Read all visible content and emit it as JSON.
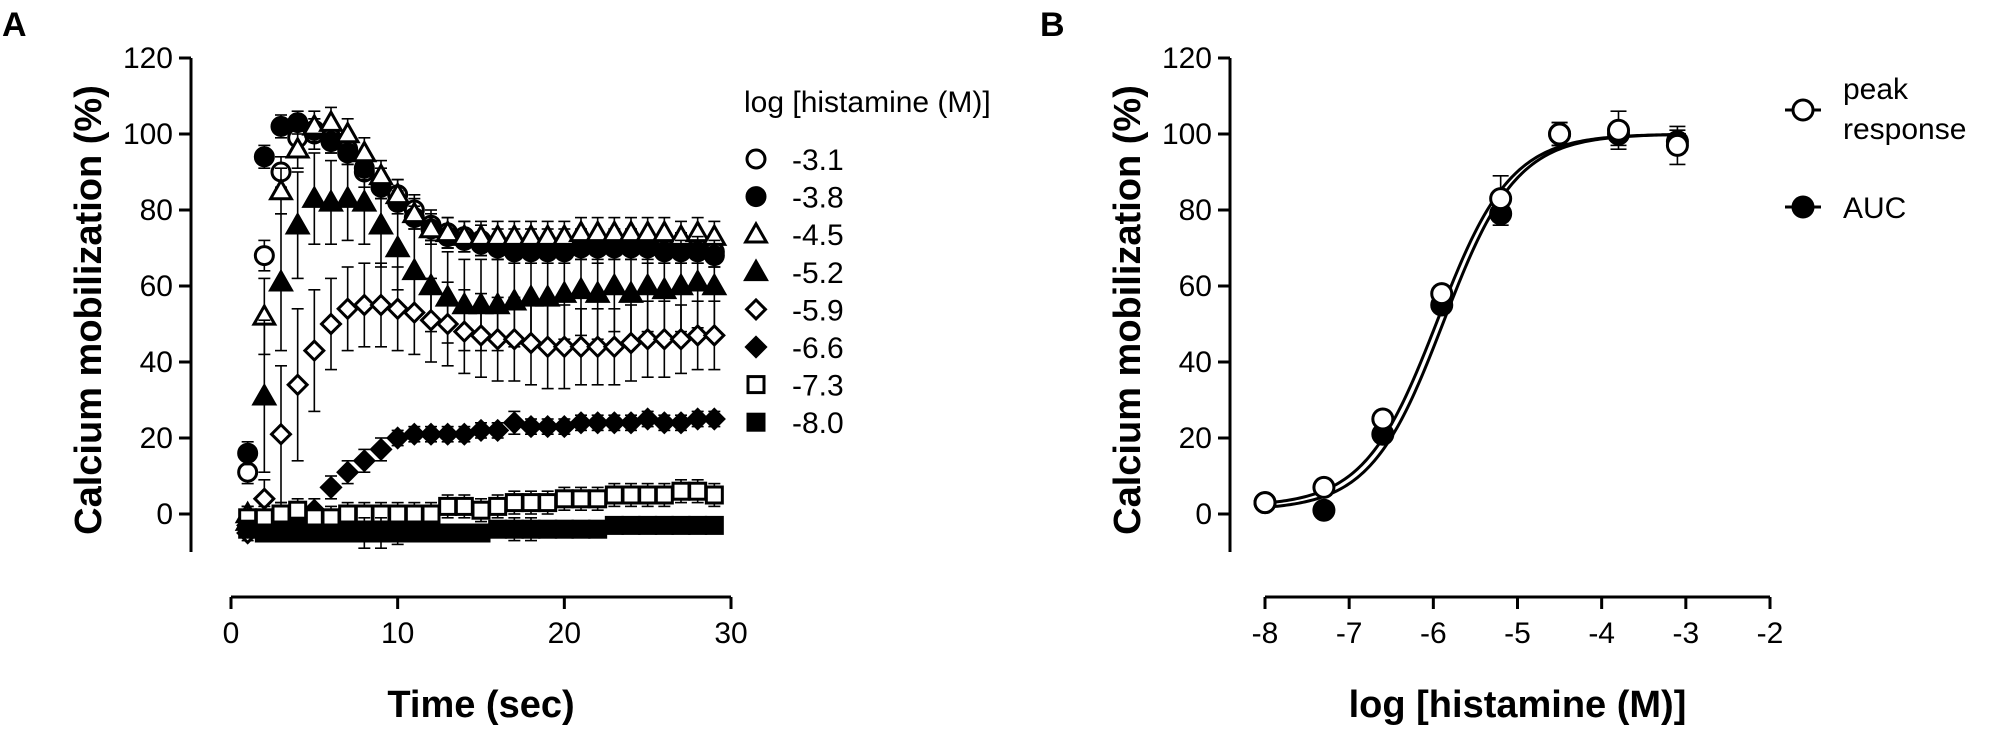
{
  "chart_data": [
    {
      "panel": "A",
      "type": "scatter",
      "xlabel": "Time (sec)",
      "ylabel": "Calcium mobilization (%)",
      "xlim": [
        0,
        30
      ],
      "ylim": [
        -10,
        120
      ],
      "xticks": [
        0,
        10,
        20,
        30
      ],
      "yticks": [
        0,
        20,
        40,
        60,
        80,
        100,
        120
      ],
      "legend_title": "log [histamine (M)]",
      "legend_position": "right",
      "series": [
        {
          "name": "-3.1",
          "marker": "circle",
          "filled": false,
          "x": [
            1,
            2,
            3,
            4,
            5,
            6,
            7,
            8,
            9,
            10,
            11,
            12,
            13,
            14,
            15,
            16,
            17,
            18,
            19,
            20,
            21,
            22,
            23,
            24,
            25,
            26,
            27,
            28,
            29
          ],
          "y": [
            11,
            68,
            90,
            99,
            100,
            99,
            96,
            90,
            87,
            84,
            80,
            76,
            74,
            73,
            72,
            71,
            71,
            71,
            71,
            71,
            71,
            70,
            71,
            71,
            70,
            70,
            70,
            70,
            69
          ],
          "err": [
            3,
            4,
            4,
            4,
            4,
            4,
            4,
            4,
            4,
            4,
            4,
            4,
            4,
            4,
            4,
            4,
            4,
            4,
            4,
            4,
            4,
            4,
            4,
            4,
            4,
            4,
            4,
            4,
            4
          ]
        },
        {
          "name": "-3.8",
          "marker": "circle",
          "filled": true,
          "x": [
            1,
            2,
            3,
            4,
            5,
            6,
            7,
            8,
            9,
            10,
            11,
            12,
            13,
            14,
            15,
            16,
            17,
            18,
            19,
            20,
            21,
            22,
            23,
            24,
            25,
            26,
            27,
            28,
            29
          ],
          "y": [
            16,
            94,
            102,
            103,
            101,
            98,
            95,
            91,
            86,
            82,
            78,
            75,
            73,
            72,
            71,
            70,
            69,
            69,
            69,
            69,
            70,
            70,
            70,
            70,
            70,
            69,
            69,
            69,
            68
          ],
          "err": [
            3,
            3,
            3,
            3,
            3,
            3,
            3,
            3,
            3,
            3,
            3,
            3,
            3,
            3,
            3,
            3,
            3,
            3,
            3,
            3,
            3,
            3,
            3,
            3,
            3,
            3,
            3,
            3,
            3
          ]
        },
        {
          "name": "-4.5",
          "marker": "triangle",
          "filled": false,
          "x": [
            1,
            2,
            3,
            4,
            5,
            6,
            7,
            8,
            9,
            10,
            11,
            12,
            13,
            14,
            15,
            16,
            17,
            18,
            19,
            20,
            21,
            22,
            23,
            24,
            25,
            26,
            27,
            28,
            29
          ],
          "y": [
            0,
            52,
            85,
            96,
            102,
            103,
            100,
            95,
            89,
            84,
            79,
            75,
            74,
            73,
            73,
            73,
            73,
            73,
            73,
            73,
            74,
            74,
            74,
            74,
            74,
            74,
            73,
            74,
            73
          ],
          "err": [
            2,
            10,
            6,
            5,
            4,
            4,
            4,
            4,
            4,
            4,
            4,
            4,
            4,
            4,
            4,
            4,
            4,
            4,
            4,
            4,
            4,
            4,
            4,
            4,
            4,
            4,
            4,
            4,
            4
          ]
        },
        {
          "name": "-5.2",
          "marker": "triangle",
          "filled": true,
          "x": [
            1,
            2,
            3,
            4,
            5,
            6,
            7,
            8,
            9,
            10,
            11,
            12,
            13,
            14,
            15,
            16,
            17,
            18,
            19,
            20,
            21,
            22,
            23,
            24,
            25,
            26,
            27,
            28,
            29
          ],
          "y": [
            -2,
            31,
            61,
            76,
            83,
            82,
            83,
            82,
            76,
            70,
            64,
            60,
            57,
            55,
            55,
            55,
            56,
            57,
            57,
            58,
            59,
            58,
            60,
            58,
            60,
            59,
            60,
            61,
            60
          ],
          "err": [
            2,
            20,
            18,
            14,
            12,
            11,
            11,
            11,
            11,
            11,
            12,
            12,
            12,
            12,
            12,
            12,
            12,
            12,
            12,
            12,
            12,
            12,
            12,
            12,
            12,
            12,
            12,
            12,
            12
          ]
        },
        {
          "name": "-5.9",
          "marker": "diamond",
          "filled": false,
          "x": [
            1,
            2,
            3,
            4,
            5,
            6,
            7,
            8,
            9,
            10,
            11,
            12,
            13,
            14,
            15,
            16,
            17,
            18,
            19,
            20,
            21,
            22,
            23,
            24,
            25,
            26,
            27,
            28,
            29
          ],
          "y": [
            -5,
            4,
            21,
            34,
            43,
            50,
            54,
            55,
            55,
            54,
            53,
            51,
            50,
            48,
            47,
            46,
            46,
            45,
            44,
            44,
            44,
            44,
            44,
            45,
            46,
            46,
            46,
            47,
            47
          ],
          "err": [
            2,
            5,
            18,
            20,
            16,
            12,
            11,
            11,
            11,
            11,
            11,
            11,
            11,
            11,
            11,
            11,
            11,
            11,
            11,
            11,
            10,
            10,
            10,
            10,
            10,
            10,
            9,
            9,
            9
          ]
        },
        {
          "name": "-6.6",
          "marker": "diamond",
          "filled": true,
          "x": [
            1,
            2,
            3,
            4,
            5,
            6,
            7,
            8,
            9,
            10,
            11,
            12,
            13,
            14,
            15,
            16,
            17,
            18,
            19,
            20,
            21,
            22,
            23,
            24,
            25,
            26,
            27,
            28,
            29
          ],
          "y": [
            -3,
            -4,
            -1,
            -2,
            1,
            7,
            11,
            14,
            17,
            20,
            21,
            21,
            21,
            21,
            22,
            22,
            24,
            23,
            23,
            23,
            24,
            24,
            24,
            24,
            25,
            24,
            24,
            25,
            25
          ],
          "err": [
            2,
            2,
            3,
            3,
            3,
            3,
            3,
            3,
            3,
            2,
            2,
            2,
            2,
            2,
            2,
            2,
            3,
            2,
            2,
            2,
            2,
            2,
            2,
            2,
            2,
            2,
            2,
            2,
            2
          ]
        },
        {
          "name": "-7.3",
          "marker": "square",
          "filled": false,
          "x": [
            1,
            2,
            3,
            4,
            5,
            6,
            7,
            8,
            9,
            10,
            11,
            12,
            13,
            14,
            15,
            16,
            17,
            18,
            19,
            20,
            21,
            22,
            23,
            24,
            25,
            26,
            27,
            28,
            29
          ],
          "y": [
            -1,
            -1,
            0,
            1,
            -1,
            -1,
            0,
            0,
            0,
            0,
            0,
            0,
            2,
            2,
            1,
            2,
            3,
            3,
            3,
            4,
            4,
            4,
            5,
            5,
            5,
            5,
            6,
            6,
            5
          ],
          "err": [
            3,
            3,
            3,
            3,
            3,
            3,
            3,
            3,
            3,
            3,
            3,
            3,
            3,
            3,
            3,
            3,
            3,
            3,
            3,
            3,
            3,
            3,
            3,
            3,
            3,
            3,
            3,
            3,
            3
          ]
        },
        {
          "name": "-8.0",
          "marker": "square",
          "filled": true,
          "x": [
            1,
            2,
            3,
            4,
            5,
            6,
            7,
            8,
            9,
            10,
            11,
            12,
            13,
            14,
            15,
            16,
            17,
            18,
            19,
            20,
            21,
            22,
            23,
            24,
            25,
            26,
            27,
            28,
            29
          ],
          "y": [
            -4,
            -5,
            -5,
            -5,
            -5,
            -5,
            -5,
            -5,
            -5,
            -5,
            -5,
            -5,
            -5,
            -5,
            -5,
            -4,
            -4,
            -4,
            -4,
            -4,
            -4,
            -4,
            -3,
            -3,
            -3,
            -3,
            -3,
            -3,
            -3
          ],
          "err": [
            2,
            2,
            2,
            2,
            2,
            2,
            2,
            4,
            4,
            3,
            2,
            2,
            2,
            2,
            2,
            2,
            3,
            3,
            2,
            2,
            2,
            2,
            2,
            2,
            2,
            2,
            2,
            2,
            2
          ]
        }
      ]
    },
    {
      "panel": "B",
      "type": "scatter",
      "xlabel": "log [histamine (M)]",
      "ylabel": "Calcium mobilization (%)",
      "xlim": [
        -8,
        -2
      ],
      "ylim": [
        -10,
        120
      ],
      "xticks": [
        -8,
        -7,
        -6,
        -5,
        -4,
        -3,
        -2
      ],
      "yticks": [
        0,
        20,
        40,
        60,
        80,
        100,
        120
      ],
      "legend_position": "top-right",
      "series": [
        {
          "name": "peak response",
          "marker": "circle",
          "filled": false,
          "x": [
            -8.0,
            -7.3,
            -6.6,
            -5.9,
            -5.2,
            -4.5,
            -3.8,
            -3.1
          ],
          "y": [
            3,
            7,
            25,
            58,
            83,
            100,
            101,
            97
          ],
          "err": [
            1.5,
            2,
            2,
            2,
            6,
            3,
            5,
            5
          ],
          "fit": {
            "type": "sigmoid",
            "bottom": 2,
            "top": 100,
            "logEC50": -5.95,
            "hill": 1
          }
        },
        {
          "name": "AUC",
          "marker": "circle",
          "filled": true,
          "x": [
            -8.0,
            -7.3,
            -6.6,
            -5.9,
            -5.2,
            -4.5,
            -3.8,
            -3.1
          ],
          "y": [
            3,
            1,
            21,
            55,
            79,
            100,
            100,
            98
          ],
          "err": [
            1.5,
            1,
            2,
            2,
            3,
            3,
            3,
            3
          ],
          "fit": {
            "type": "sigmoid",
            "bottom": 1,
            "top": 100,
            "logEC50": -5.88,
            "hill": 1
          }
        }
      ]
    }
  ]
}
